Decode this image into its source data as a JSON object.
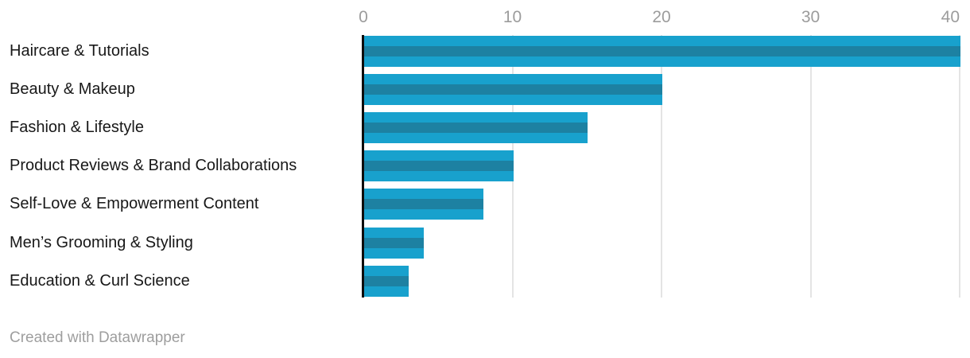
{
  "chart_data": {
    "type": "bar",
    "orientation": "horizontal",
    "title": "",
    "categories": [
      "Haircare & Tutorials",
      "Beauty & Makeup",
      "Fashion & Lifestyle",
      "Product Reviews & Brand Collaborations",
      "Self-Love & Empowerment Content",
      "Men’s Grooming & Styling",
      "Education & Curl Science"
    ],
    "values": [
      40,
      20,
      15,
      10,
      8,
      4,
      3
    ],
    "x_ticks": [
      0,
      10,
      20,
      30,
      40
    ],
    "xlim": [
      0,
      40
    ],
    "xlabel": "",
    "ylabel": "",
    "grid": "vertical",
    "legend": "none",
    "axis_position": "top"
  },
  "colors": {
    "bar_light": "#18a1cd",
    "bar_dark": "#1d81a2",
    "gridline": "#e4e4e4",
    "tick_label": "#9c9c9c",
    "category_label": "#181818",
    "axis_line": "#0d0d0d",
    "attribution": "#9e9e9e",
    "background": "#ffffff"
  },
  "attribution": "Created with Datawrapper"
}
